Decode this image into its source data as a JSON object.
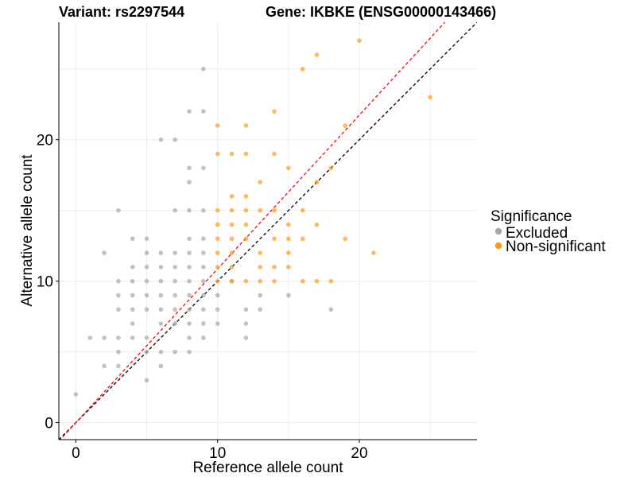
{
  "chart_data": {
    "type": "scatter",
    "title_left": "Variant: rs2297544",
    "title_right": "Gene: IKBKE (ENSG00000143466)",
    "xlabel": "Reference allele count",
    "ylabel": "Alternative allele count",
    "xlim": [
      -1.2,
      28.3
    ],
    "ylim": [
      -1.2,
      28.3
    ],
    "xticks": [
      0,
      10,
      20
    ],
    "yticks": [
      0,
      10,
      20
    ],
    "grid": true,
    "legend": {
      "title": "Significance",
      "position": "right",
      "entries": [
        {
          "label": "Excluded",
          "color": "#a6a6a6"
        },
        {
          "label": "Non-significant",
          "color": "#ff9a1a"
        }
      ]
    },
    "reference_lines": [
      {
        "kind": "identity",
        "slope": 1,
        "intercept": 0,
        "color": "#000000",
        "dash": "dashed"
      },
      {
        "kind": "fit",
        "slope": 1.087,
        "intercept": 0,
        "color": "#ff0000",
        "dash": "dashed"
      }
    ],
    "series": [
      {
        "name": "Excluded",
        "color": "#a6a6a6",
        "points": [
          [
            0,
            2
          ],
          [
            1,
            6
          ],
          [
            2,
            4
          ],
          [
            2,
            6
          ],
          [
            2,
            12
          ],
          [
            3,
            4
          ],
          [
            3,
            5
          ],
          [
            3,
            6
          ],
          [
            3,
            8
          ],
          [
            3,
            9
          ],
          [
            3,
            10
          ],
          [
            3,
            15
          ],
          [
            4,
            6
          ],
          [
            4,
            7
          ],
          [
            4,
            8
          ],
          [
            4,
            9
          ],
          [
            4,
            10
          ],
          [
            4,
            11
          ],
          [
            4,
            13
          ],
          [
            5,
            3
          ],
          [
            5,
            5
          ],
          [
            5,
            6
          ],
          [
            5,
            8
          ],
          [
            5,
            9
          ],
          [
            5,
            10
          ],
          [
            5,
            11
          ],
          [
            5,
            12
          ],
          [
            5,
            13
          ],
          [
            6,
            4
          ],
          [
            6,
            5
          ],
          [
            6,
            7
          ],
          [
            6,
            8
          ],
          [
            6,
            9
          ],
          [
            6,
            10
          ],
          [
            6,
            11
          ],
          [
            6,
            12
          ],
          [
            6,
            20
          ],
          [
            7,
            5
          ],
          [
            7,
            7
          ],
          [
            7,
            8
          ],
          [
            7,
            9
          ],
          [
            7,
            10
          ],
          [
            7,
            11
          ],
          [
            7,
            12
          ],
          [
            7,
            15
          ],
          [
            7,
            20
          ],
          [
            8,
            5
          ],
          [
            8,
            6
          ],
          [
            8,
            7
          ],
          [
            8,
            8
          ],
          [
            8,
            9
          ],
          [
            8,
            10
          ],
          [
            8,
            11
          ],
          [
            8,
            12
          ],
          [
            8,
            13
          ],
          [
            8,
            15
          ],
          [
            8,
            17
          ],
          [
            8,
            18
          ],
          [
            8,
            22
          ],
          [
            9,
            6
          ],
          [
            9,
            7
          ],
          [
            9,
            8
          ],
          [
            9,
            9
          ],
          [
            9,
            10
          ],
          [
            9,
            11
          ],
          [
            9,
            12
          ],
          [
            9,
            13
          ],
          [
            9,
            15
          ],
          [
            9,
            18
          ],
          [
            9,
            22
          ],
          [
            9,
            25
          ],
          [
            10,
            7
          ],
          [
            10,
            8
          ],
          [
            10,
            9
          ],
          [
            11,
            10
          ],
          [
            12,
            6
          ],
          [
            12,
            7
          ],
          [
            12,
            8
          ],
          [
            13,
            8
          ],
          [
            13,
            9
          ],
          [
            15,
            9
          ],
          [
            18,
            8
          ]
        ]
      },
      {
        "name": "Non-significant",
        "color": "#ff9a1a",
        "points": [
          [
            10,
            10
          ],
          [
            10,
            11
          ],
          [
            10,
            12
          ],
          [
            10,
            13
          ],
          [
            10,
            14
          ],
          [
            10,
            15
          ],
          [
            10,
            19
          ],
          [
            10,
            21
          ],
          [
            11,
            10
          ],
          [
            11,
            11
          ],
          [
            11,
            12
          ],
          [
            11,
            13
          ],
          [
            11,
            14
          ],
          [
            11,
            15
          ],
          [
            11,
            16
          ],
          [
            11,
            19
          ],
          [
            12,
            10
          ],
          [
            12,
            13
          ],
          [
            12,
            14
          ],
          [
            12,
            15
          ],
          [
            12,
            16
          ],
          [
            12,
            19
          ],
          [
            12,
            21
          ],
          [
            13,
            10
          ],
          [
            13,
            11
          ],
          [
            13,
            12
          ],
          [
            13,
            15
          ],
          [
            13,
            17
          ],
          [
            14,
            10
          ],
          [
            14,
            11
          ],
          [
            14,
            13
          ],
          [
            14,
            15
          ],
          [
            14,
            19
          ],
          [
            14,
            22
          ],
          [
            15,
            11
          ],
          [
            15,
            12
          ],
          [
            15,
            13
          ],
          [
            15,
            14
          ],
          [
            15,
            18
          ],
          [
            16,
            10
          ],
          [
            16,
            13
          ],
          [
            16,
            15
          ],
          [
            16,
            25
          ],
          [
            17,
            10
          ],
          [
            17,
            14
          ],
          [
            17,
            17
          ],
          [
            17,
            26
          ],
          [
            18,
            10
          ],
          [
            18,
            18
          ],
          [
            19,
            13
          ],
          [
            19,
            21
          ],
          [
            20,
            27
          ],
          [
            21,
            12
          ],
          [
            25,
            23
          ]
        ]
      }
    ]
  }
}
